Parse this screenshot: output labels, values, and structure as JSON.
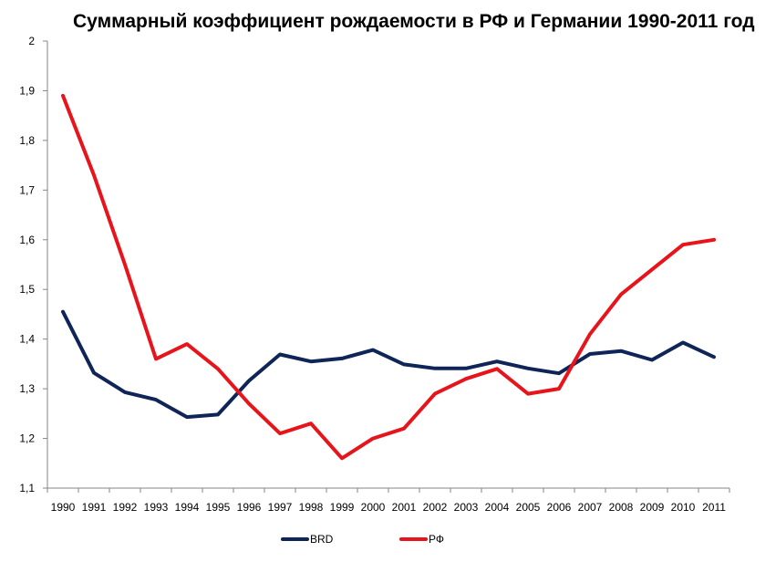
{
  "chart_data": {
    "type": "line",
    "title": "Суммарный коэффициент рождаемости в РФ и Германии 1990-2011 год",
    "xlabel": "",
    "ylabel": "",
    "ylim": [
      1.1,
      2.0
    ],
    "y_ticks": [
      "1,1",
      "1,2",
      "1,3",
      "1,4",
      "1,5",
      "1,6",
      "1,7",
      "1,8",
      "1,9",
      "2"
    ],
    "y_tick_values": [
      1.1,
      1.2,
      1.3,
      1.4,
      1.5,
      1.6,
      1.7,
      1.8,
      1.9,
      2.0
    ],
    "categories": [
      "1990",
      "1991",
      "1992",
      "1993",
      "1994",
      "1995",
      "1996",
      "1997",
      "1998",
      "1999",
      "2000",
      "2001",
      "2002",
      "2003",
      "2004",
      "2005",
      "2006",
      "2007",
      "2008",
      "2009",
      "2010",
      "2011"
    ],
    "grid": false,
    "legend_position": "bottom",
    "series": [
      {
        "name": "BRD",
        "color": "#0f2557",
        "values": [
          1.455,
          1.332,
          1.293,
          1.278,
          1.243,
          1.248,
          1.316,
          1.369,
          1.355,
          1.361,
          1.378,
          1.349,
          1.341,
          1.341,
          1.355,
          1.341,
          1.331,
          1.37,
          1.376,
          1.358,
          1.393,
          1.364
        ]
      },
      {
        "name": "РФ",
        "color": "#e8141b",
        "values": [
          1.89,
          1.73,
          1.55,
          1.36,
          1.39,
          1.34,
          1.27,
          1.21,
          1.23,
          1.16,
          1.2,
          1.22,
          1.29,
          1.32,
          1.34,
          1.29,
          1.3,
          1.41,
          1.49,
          1.54,
          1.59,
          1.6
        ]
      }
    ]
  }
}
